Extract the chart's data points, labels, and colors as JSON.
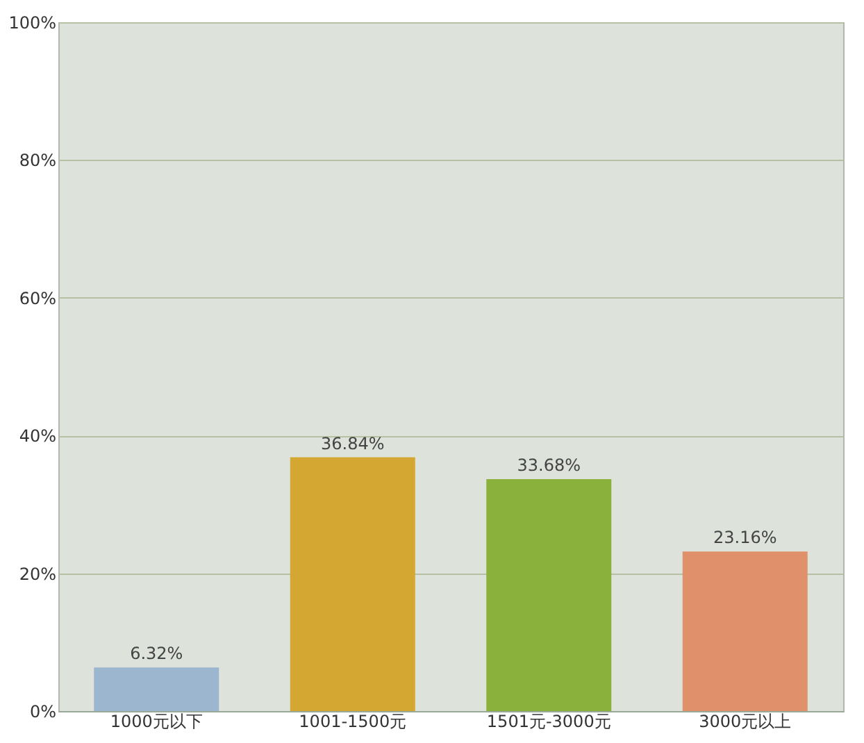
{
  "chart_data": {
    "type": "bar",
    "categories": [
      "1000元以下",
      "1001-1500元",
      "1501元-3000元",
      "3000元以上"
    ],
    "values": [
      6.32,
      36.84,
      33.68,
      23.16
    ],
    "colors": [
      "#9db6d0",
      "#d4a733",
      "#8ab13c",
      "#e0906a"
    ],
    "value_labels": [
      "6.32%",
      "36.84%",
      "33.68%",
      "23.16%"
    ],
    "ylim": [
      0,
      100
    ],
    "yticks": [
      {
        "value": 0,
        "label": "0%"
      },
      {
        "value": 20,
        "label": "20%"
      },
      {
        "value": 40,
        "label": "40%"
      },
      {
        "value": 60,
        "label": "60%"
      },
      {
        "value": 80,
        "label": "80%"
      },
      {
        "value": 100,
        "label": "100%"
      }
    ],
    "grid": "y"
  }
}
